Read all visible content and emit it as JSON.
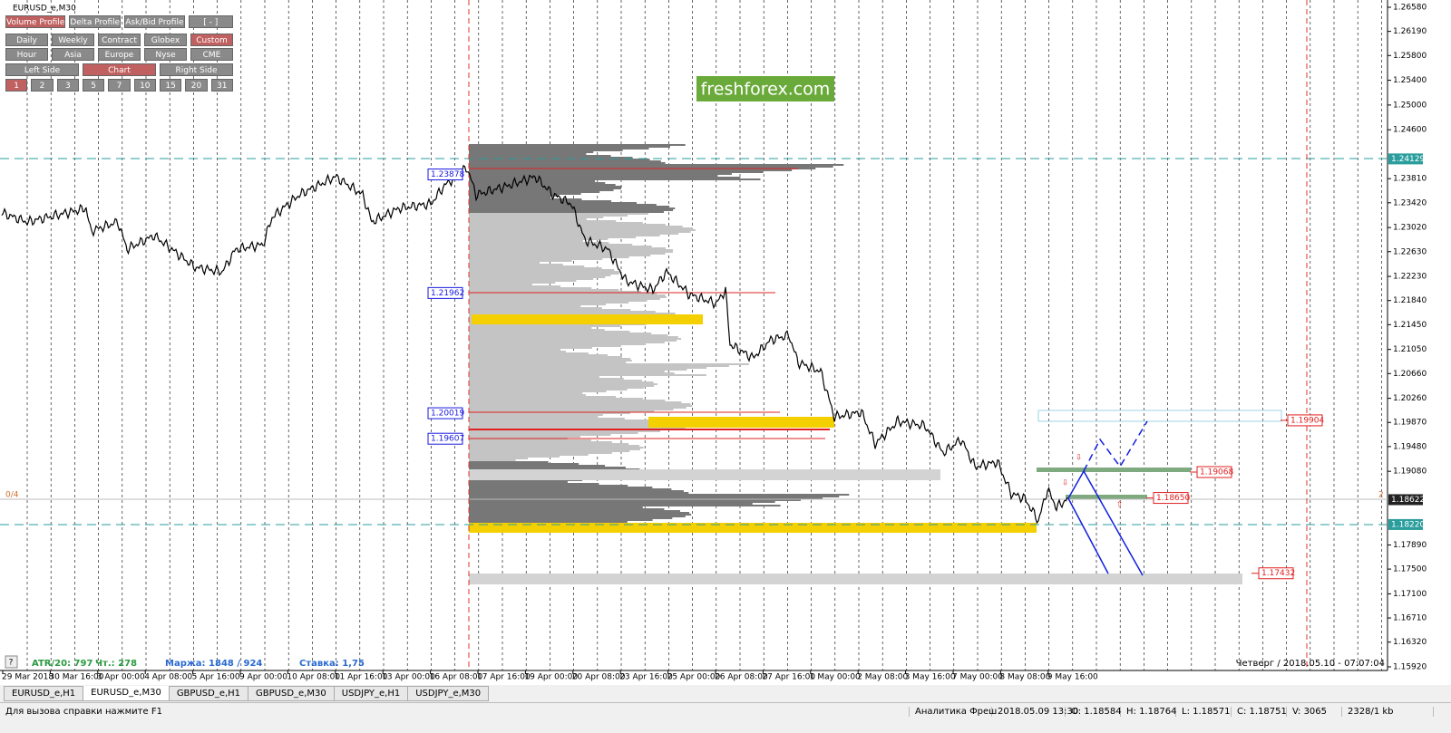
{
  "window_title": "EURUSD_e,M30",
  "toolbar": {
    "rows": [
      [
        {
          "label": "Volume Profile",
          "active": true
        },
        {
          "label": "Delta Profile",
          "active": false
        },
        {
          "label": "Ask/Bid Profile",
          "active": false
        },
        {
          "label": "[ - ]",
          "active": false
        }
      ],
      [
        {
          "label": "Daily",
          "active": false
        },
        {
          "label": "Weekly",
          "active": false
        },
        {
          "label": "Contract",
          "active": false
        },
        {
          "label": "Globex",
          "active": false
        },
        {
          "label": "Custom",
          "active": true
        }
      ],
      [
        {
          "label": "Hour",
          "active": false
        },
        {
          "label": "Asia",
          "active": false
        },
        {
          "label": "Europe",
          "active": false
        },
        {
          "label": "Nyse",
          "active": false
        },
        {
          "label": "CME",
          "active": false
        }
      ],
      [
        {
          "label": "Left Side",
          "active": false
        },
        {
          "label": "Chart",
          "active": true
        },
        {
          "label": "Right Side",
          "active": false
        }
      ],
      [
        {
          "label": "1",
          "active": true
        },
        {
          "label": "2",
          "active": false
        },
        {
          "label": "3",
          "active": false
        },
        {
          "label": "5",
          "active": false
        },
        {
          "label": "7",
          "active": false
        },
        {
          "label": "10",
          "active": false
        },
        {
          "label": "15",
          "active": false
        },
        {
          "label": "20",
          "active": false
        },
        {
          "label": "31",
          "active": false
        }
      ]
    ]
  },
  "watermark": "freshforex.com",
  "price_axis": {
    "range": [
      1.2658,
      1.1592
    ],
    "ticks": [
      {
        "value": 1.2658,
        "label": "1.26580"
      },
      {
        "value": 1.2619,
        "label": "1.26190"
      },
      {
        "value": 1.258,
        "label": "1.25800"
      },
      {
        "value": 1.254,
        "label": "1.25400"
      },
      {
        "value": 1.25,
        "label": "1.25000"
      },
      {
        "value": 1.246,
        "label": "1.24600"
      },
      {
        "value": 1.2381,
        "label": "1.23810"
      },
      {
        "value": 1.2342,
        "label": "1.23420"
      },
      {
        "value": 1.2302,
        "label": "1.23020"
      },
      {
        "value": 1.2263,
        "label": "1.22630"
      },
      {
        "value": 1.2223,
        "label": "1.22230"
      },
      {
        "value": 1.2184,
        "label": "1.21840"
      },
      {
        "value": 1.2145,
        "label": "1.21450"
      },
      {
        "value": 1.2105,
        "label": "1.21050"
      },
      {
        "value": 1.2066,
        "label": "1.20660"
      },
      {
        "value": 1.2026,
        "label": "1.20260"
      },
      {
        "value": 1.1987,
        "label": "1.19870"
      },
      {
        "value": 1.1948,
        "label": "1.19480"
      },
      {
        "value": 1.1908,
        "label": "1.19080"
      },
      {
        "value": 1.1789,
        "label": "1.17890"
      },
      {
        "value": 1.175,
        "label": "1.17500"
      },
      {
        "value": 1.171,
        "label": "1.17100"
      },
      {
        "value": 1.1671,
        "label": "1.16710"
      },
      {
        "value": 1.1632,
        "label": "1.16320"
      },
      {
        "value": 1.1592,
        "label": "1.15920"
      }
    ],
    "markers": [
      {
        "value": 1.24129,
        "label": "1.24129",
        "color": "#2a9d9d"
      },
      {
        "value": 1.18622,
        "label": "1.18622",
        "color": "#222222"
      },
      {
        "value": 1.1822,
        "label": "1.18220",
        "color": "#2a9d9d"
      }
    ]
  },
  "time_axis": {
    "labels": [
      "29 Mar 2018",
      "30 Mar 16:00",
      "3 Apr 00:00",
      "4 Apr 08:00",
      "5 Apr 16:00",
      "9 Apr 00:00",
      "10 Apr 08:00",
      "11 Apr 16:00",
      "13 Apr 00:00",
      "16 Apr 08:00",
      "17 Apr 16:00",
      "19 Apr 00:00",
      "20 Apr 08:00",
      "23 Apr 16:00",
      "25 Apr 00:00",
      "26 Apr 08:00",
      "27 Apr 16:00",
      "1 May 00:00",
      "2 May 08:00",
      "3 May 16:00",
      "7 May 00:00",
      "8 May 08:00",
      "9 May 16:00"
    ]
  },
  "levels": {
    "left": [
      {
        "value": 1.23878,
        "label": "1.23878"
      },
      {
        "value": 1.21962,
        "label": "1.21962"
      },
      {
        "value": 1.20019,
        "label": "1.20019"
      },
      {
        "value": 1.19607,
        "label": "1.19607"
      }
    ],
    "right": [
      {
        "value": 1.19904,
        "label": "1.19904"
      },
      {
        "value": 1.19068,
        "label": "1.19068"
      },
      {
        "value": 1.1865,
        "label": "1.18650"
      },
      {
        "value": 1.17432,
        "label": "1.17432"
      }
    ]
  },
  "overlay": {
    "counter": "0/4",
    "right_counter": "2",
    "help": "?",
    "atr": "ATR/20: 797",
    "thu": "Чт.: 278",
    "margin": "Маржа: 1848 / 924",
    "rate": "Ставка: 1,75",
    "clock": "Четверг / 2018.05.10 - 07:07:04"
  },
  "tabs": [
    {
      "label": "EURUSD_e,H1",
      "active": false
    },
    {
      "label": "EURUSD_e,M30",
      "active": true
    },
    {
      "label": "GBPUSD_e,H1",
      "active": false
    },
    {
      "label": "GBPUSD_e,M30",
      "active": false
    },
    {
      "label": "USDJPY_e,H1",
      "active": false
    },
    {
      "label": "USDJPY_e,M30",
      "active": false
    }
  ],
  "status": [
    "Для вызова справки нажмите F1",
    "Аналитика Фреш",
    "2018.05.09 13:30",
    "O: 1.18584",
    "H: 1.18764",
    "L: 1.18571",
    "C: 1.18751",
    "V: 3065",
    "2328/1 kb"
  ]
}
